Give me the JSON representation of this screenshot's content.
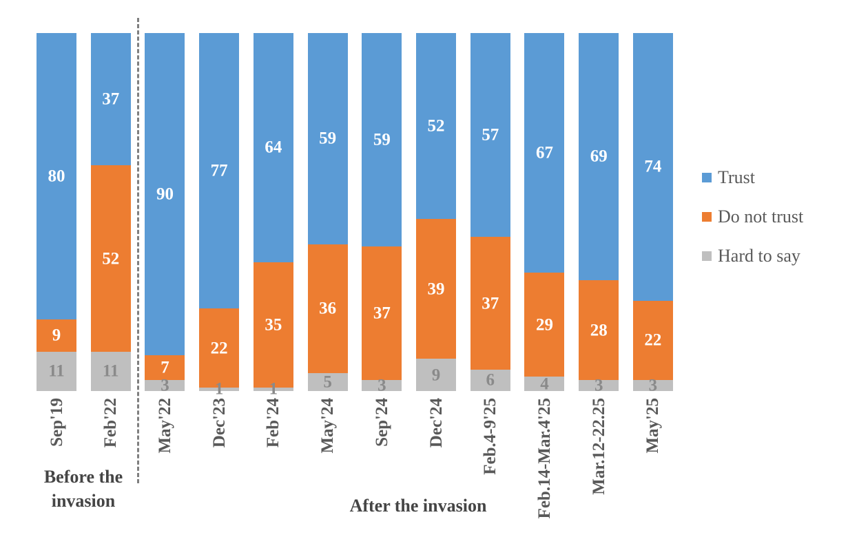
{
  "chart_data": {
    "type": "bar",
    "subtype": "stacked-100-percent-columns",
    "title": "",
    "xlabel": "",
    "ylabel": "",
    "axis_ranges": {
      "y_percent": [
        0,
        100
      ]
    },
    "grid": false,
    "legend_position": "right",
    "categories": [
      "Sep'19",
      "Feb'22",
      "May'22",
      "Dec'23",
      "Feb'24",
      "May'24",
      "Sep'24",
      "Dec'24",
      "Feb.4-9'25",
      "Feb.14-Mar.4'25",
      "Mar.12-22.25",
      "May'25"
    ],
    "series": [
      {
        "name": "Trust",
        "color": "#5B9BD5",
        "label_color": "#FFFFFF",
        "values": [
          80,
          37,
          90,
          77,
          64,
          59,
          59,
          52,
          57,
          67,
          69,
          74
        ]
      },
      {
        "name": "Do not trust",
        "color": "#ED7D31",
        "label_color": "#FFFFFF",
        "values": [
          9,
          52,
          7,
          22,
          35,
          36,
          37,
          39,
          37,
          29,
          28,
          22
        ]
      },
      {
        "name": "Hard to say",
        "color": "#BFBFBF",
        "label_color": "#8A8A8A",
        "values": [
          11,
          11,
          3,
          1,
          1,
          5,
          3,
          9,
          6,
          4,
          3,
          3
        ]
      }
    ],
    "group_spans": [
      {
        "label": "Before the invasion",
        "categories": [
          "Sep'19",
          "Feb'22"
        ]
      },
      {
        "label": "After the invasion",
        "categories": [
          "May'22",
          "Dec'23",
          "Feb'24",
          "May'24",
          "Sep'24",
          "Dec'24",
          "Feb.4-9'25",
          "Feb.14-Mar.4'25",
          "Mar.12-22.25",
          "May'25"
        ]
      }
    ]
  },
  "legend": {
    "items": [
      {
        "label": "Trust",
        "color": "#5B9BD5"
      },
      {
        "label": "Do not trust",
        "color": "#ED7D31"
      },
      {
        "label": "Hard to say",
        "color": "#BFBFBF"
      }
    ]
  },
  "group_labels": {
    "before_line1": "Before the",
    "before_line2": "invasion",
    "after": "After the invasion"
  },
  "colors": {
    "trust": "#5B9BD5",
    "do_not_trust": "#ED7D31",
    "hard_to_say": "#BFBFBF",
    "divider_line": "#7F7F7F",
    "axis_label": "#595959",
    "group_label": "#454545"
  }
}
